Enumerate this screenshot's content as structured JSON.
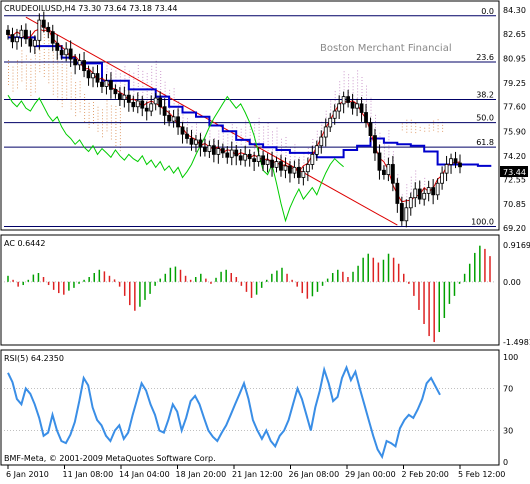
{
  "symbol_header": "CRUDEOILUSD,H4  73.30 73.64 73.18 73.44",
  "watermark": "Boston Merchant Financial",
  "copyright": "BMF-Meta, © 2001-2009 MetaQuotes Software Corp.",
  "current_price_label": "73.44",
  "colors": {
    "blue_line": "#0000cc",
    "red_line": "#dd0000",
    "green_line": "#00cc00",
    "fib_line": "#000066",
    "ac_up": "#00a000",
    "ac_down": "#dd2222",
    "rsi_line": "#3a8ee6",
    "cloud_pink": "#cc99cc",
    "cloud_orange": "#e0a070"
  },
  "chart_data": [
    {
      "type": "candlestick",
      "panel": "price",
      "y_ticks": [
        "84.30",
        "82.65",
        "80.95",
        "79.25",
        "77.60",
        "75.90",
        "74.20",
        "72.55",
        "70.85",
        "69.20"
      ],
      "ylim": [
        69.2,
        84.3
      ],
      "fib_levels": [
        {
          "label": "0.0",
          "price": 83.9
        },
        {
          "label": "23.6",
          "price": 80.7
        },
        {
          "label": "38.2",
          "price": 78.1
        },
        {
          "label": "50.0",
          "price": 76.5
        },
        {
          "label": "61.8",
          "price": 74.8
        },
        {
          "label": "100.0",
          "price": 69.3
        }
      ],
      "x_ticks": [
        "6 Jan 2010",
        "11 Jan 08:00",
        "14 Jan 04:00",
        "18 Jan 20:00",
        "21 Jan 12:00",
        "26 Jan 08:00",
        "29 Jan 00:00",
        "2 Feb 20:00",
        "5 Feb 12:00"
      ],
      "close_series": [
        82.6,
        82.1,
        82.4,
        82.9,
        82.3,
        81.8,
        82.2,
        83.6,
        83.1,
        82.8,
        82.0,
        81.5,
        81.2,
        81.6,
        80.9,
        80.5,
        80.8,
        80.1,
        79.6,
        79.9,
        79.3,
        79.0,
        79.4,
        78.8,
        78.5,
        78.1,
        78.4,
        77.9,
        77.6,
        78.0,
        77.5,
        77.3,
        77.8,
        78.2,
        77.6,
        77.0,
        76.6,
        76.9,
        76.2,
        75.7,
        75.4,
        75.0,
        75.3,
        74.8,
        74.5,
        74.9,
        74.3,
        74.7,
        74.4,
        74.1,
        74.6,
        74.2,
        73.9,
        74.3,
        74.0,
        73.8,
        74.2,
        73.6,
        73.9,
        73.4,
        73.8,
        73.2,
        73.5,
        73.0,
        73.4,
        72.7,
        73.1,
        73.6,
        74.3,
        74.9,
        75.5,
        76.2,
        76.8,
        77.3,
        77.8,
        78.3,
        77.9,
        77.5,
        77.8,
        77.2,
        76.5,
        75.6,
        74.4,
        73.2,
        72.9,
        73.6,
        72.3,
        70.9,
        69.7,
        70.6,
        71.3,
        71.9,
        71.2,
        71.6,
        72.0,
        71.5,
        72.3,
        73.0,
        73.6,
        74.0,
        73.7,
        73.44
      ]
    },
    {
      "type": "histogram",
      "panel": "AC",
      "label": "AC 0.6442",
      "y_ticks": [
        "0.9169",
        "0.00",
        "-1.4981"
      ],
      "ylim": [
        -1.4981,
        0.9169
      ],
      "values": [
        0.15,
        0.05,
        -0.12,
        -0.08,
        0.05,
        0.18,
        0.22,
        0.12,
        -0.08,
        -0.2,
        -0.28,
        -0.32,
        -0.22,
        -0.15,
        -0.05,
        0.05,
        0.12,
        0.22,
        0.3,
        0.26,
        0.15,
        0.06,
        -0.12,
        -0.35,
        -0.58,
        -0.72,
        -0.62,
        -0.45,
        -0.3,
        -0.1,
        0.08,
        0.2,
        0.35,
        0.38,
        0.3,
        0.15,
        0.05,
        0.12,
        0.2,
        0.08,
        -0.05,
        0.1,
        0.25,
        0.3,
        0.22,
        0.12,
        -0.1,
        -0.25,
        -0.4,
        -0.32,
        -0.15,
        0.05,
        0.2,
        0.28,
        0.35,
        0.2,
        0.05,
        -0.12,
        -0.28,
        -0.42,
        -0.36,
        -0.25,
        -0.1,
        0.08,
        0.22,
        0.3,
        0.25,
        0.12,
        0.25,
        0.4,
        0.6,
        0.7,
        0.6,
        0.48,
        0.55,
        0.7,
        0.6,
        0.45,
        0.2,
        -0.05,
        -0.35,
        -0.7,
        -1.05,
        -1.35,
        -1.5,
        -1.25,
        -0.9,
        -0.55,
        -0.35,
        -0.05,
        0.2,
        0.45,
        0.72,
        0.9,
        0.82,
        0.64
      ]
    },
    {
      "type": "line",
      "panel": "RSI",
      "label": "RSI(5) 64.2350",
      "y_ticks": [
        "100",
        "70",
        "30",
        "0"
      ],
      "ylim": [
        0,
        100
      ],
      "values": [
        85,
        76,
        60,
        55,
        70,
        65,
        55,
        42,
        25,
        28,
        45,
        30,
        20,
        18,
        26,
        38,
        58,
        80,
        73,
        52,
        40,
        35,
        25,
        20,
        30,
        35,
        22,
        28,
        45,
        60,
        75,
        68,
        55,
        45,
        30,
        28,
        40,
        55,
        48,
        30,
        42,
        58,
        63,
        55,
        42,
        30,
        24,
        20,
        28,
        35,
        45,
        55,
        65,
        75,
        60,
        40,
        30,
        22,
        30,
        20,
        15,
        25,
        30,
        40,
        55,
        70,
        60,
        45,
        30,
        52,
        68,
        88,
        75,
        58,
        62,
        80,
        90,
        78,
        86,
        70,
        55,
        40,
        25,
        12,
        5,
        20,
        18,
        15,
        32,
        40,
        45,
        42,
        50,
        60,
        75,
        80,
        72,
        64
      ]
    }
  ]
}
